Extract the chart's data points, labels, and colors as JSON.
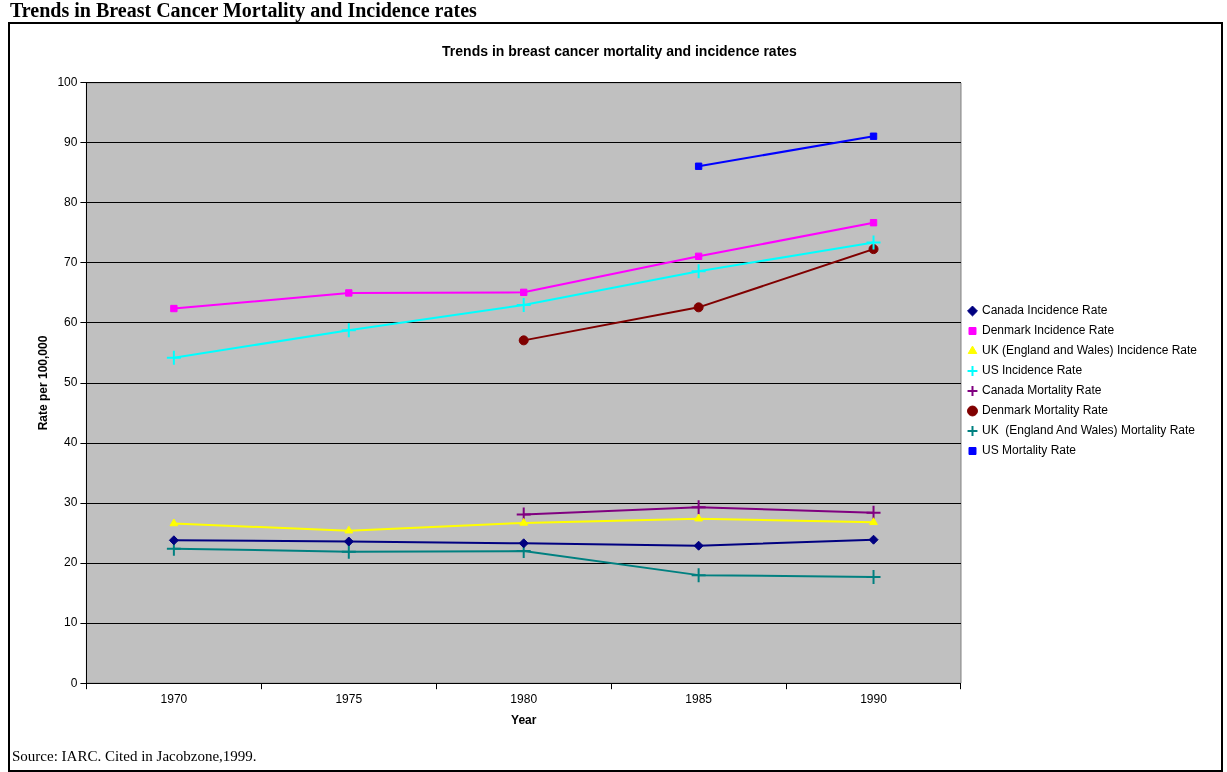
{
  "chart_data": {
    "type": "line",
    "title": "Trends in Breast Cancer Mortality and Incidence rates",
    "subtitle": "Trends in breast cancer mortality and incidence rates",
    "xlabel": "Year",
    "ylabel": "Rate per 100,000",
    "categories": [
      "1970",
      "1975",
      "1980",
      "1985",
      "1990"
    ],
    "series": [
      {
        "name": "Canada Incidence Rate",
        "color": "#000080",
        "marker": "diamond",
        "values": [
          23.8,
          23.6,
          23.3,
          22.9,
          23.9
        ]
      },
      {
        "name": "Denmark Incidence Rate",
        "color": "#ff00ff",
        "marker": "square",
        "values": [
          62.4,
          65.0,
          65.1,
          71.1,
          76.7
        ]
      },
      {
        "name": "UK (England and Wales) Incidence Rate",
        "color": "#ffff00",
        "marker": "triangle",
        "values": [
          26.6,
          25.4,
          26.7,
          27.4,
          26.8
        ]
      },
      {
        "name": "US Incidence Rate",
        "color": "#00ffff",
        "marker": "cross",
        "values": [
          54.2,
          58.8,
          63.0,
          68.6,
          73.4
        ]
      },
      {
        "name": "Canada Mortality Rate",
        "color": "#800080",
        "marker": "cross",
        "values": [
          null,
          null,
          28.1,
          29.3,
          28.4
        ]
      },
      {
        "name": "Denmark Mortality Rate",
        "color": "#800000",
        "marker": "circle",
        "values": [
          null,
          null,
          57.1,
          62.6,
          72.3
        ]
      },
      {
        "name": "UK  (England And Wales) Mortality Rate",
        "color": "#008080",
        "marker": "cross",
        "values": [
          22.4,
          21.9,
          22.0,
          18.0,
          17.7
        ]
      },
      {
        "name": "US Mortality Rate",
        "color": "#0000ff",
        "marker": "square",
        "values": [
          null,
          null,
          null,
          86.1,
          91.1
        ]
      }
    ],
    "ylim": [
      0,
      100
    ],
    "yticks": [
      0,
      10,
      20,
      30,
      40,
      50,
      60,
      70,
      80,
      90,
      100
    ],
    "grid": "y",
    "legend": "right",
    "line_style": "solid",
    "annotations": [
      "Source: IARC. Cited in Jacobzone,1999."
    ]
  }
}
